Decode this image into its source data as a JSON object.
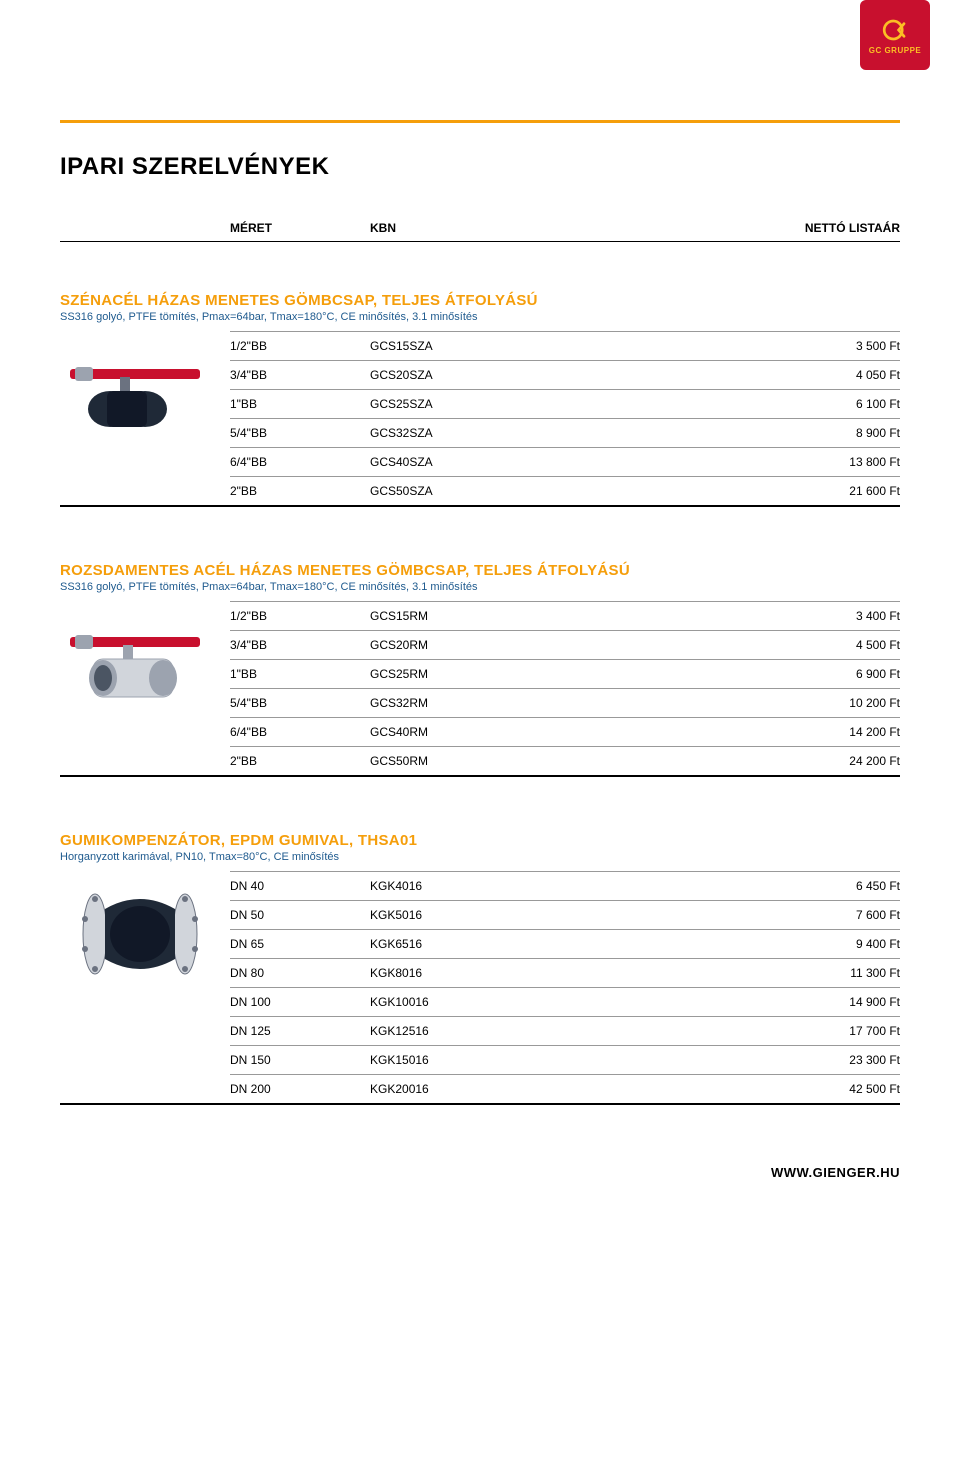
{
  "logo": {
    "text": "GC GRUPPE",
    "bg": "#c8102e",
    "fg": "#fbbf24"
  },
  "accent_color": "#f59e0b",
  "rule_color": "#f59e0b",
  "link_color": "#1e5a8e",
  "page_title": "IPARI SZERELVÉNYEK",
  "header": {
    "size": "MÉRET",
    "kbn": "KBN",
    "price": "NETTÓ LISTAÁR"
  },
  "sections": [
    {
      "title": "SZÉNACÉL HÁZAS MENETES GÖMBCSAP, TELJES ÁTFOLYÁSÚ",
      "subtitle": "SS316 golyó, PTFE tömítés, Pmax=64bar, Tmax=180°C, CE minősítés, 3.1 minősítés",
      "rows": [
        {
          "size": "1/2\"BB",
          "kbn": "GCS15SZA",
          "price": "3 500 Ft"
        },
        {
          "size": "3/4\"BB",
          "kbn": "GCS20SZA",
          "price": "4 050 Ft"
        },
        {
          "size": "1\"BB",
          "kbn": "GCS25SZA",
          "price": "6 100 Ft"
        },
        {
          "size": "5/4\"BB",
          "kbn": "GCS32SZA",
          "price": "8 900 Ft"
        },
        {
          "size": "6/4\"BB",
          "kbn": "GCS40SZA",
          "price": "13 800 Ft"
        },
        {
          "size": "2\"BB",
          "kbn": "GCS50SZA",
          "price": "21 600 Ft"
        }
      ]
    },
    {
      "title": "ROZSDAMENTES ACÉL HÁZAS MENETES GÖMBCSAP, TELJES ÁTFOLYÁSÚ",
      "subtitle": "SS316 golyó, PTFE tömítés, Pmax=64bar, Tmax=180°C, CE minősítés, 3.1 minősítés",
      "rows": [
        {
          "size": "1/2\"BB",
          "kbn": "GCS15RM",
          "price": "3 400 Ft"
        },
        {
          "size": "3/4\"BB",
          "kbn": "GCS20RM",
          "price": "4 500 Ft"
        },
        {
          "size": "1\"BB",
          "kbn": "GCS25RM",
          "price": "6 900 Ft"
        },
        {
          "size": "5/4\"BB",
          "kbn": "GCS32RM",
          "price": "10 200 Ft"
        },
        {
          "size": "6/4\"BB",
          "kbn": "GCS40RM",
          "price": "14 200 Ft"
        },
        {
          "size": "2\"BB",
          "kbn": "GCS50RM",
          "price": "24 200 Ft"
        }
      ]
    },
    {
      "title": "GUMIKOMPENZÁTOR, EPDM GUMIVAL, THSA01",
      "subtitle": "Horganyzott karimával, PN10, Tmax=80°C, CE minősítés",
      "rows": [
        {
          "size": "DN 40",
          "kbn": "KGK4016",
          "price": "6 450 Ft"
        },
        {
          "size": "DN 50",
          "kbn": "KGK5016",
          "price": "7 600 Ft"
        },
        {
          "size": "DN 65",
          "kbn": "KGK6516",
          "price": "9 400 Ft"
        },
        {
          "size": "DN 80",
          "kbn": "KGK8016",
          "price": "11 300 Ft"
        },
        {
          "size": "DN 100",
          "kbn": "KGK10016",
          "price": "14 900 Ft"
        },
        {
          "size": "DN 125",
          "kbn": "KGK12516",
          "price": "17 700 Ft"
        },
        {
          "size": "DN 150",
          "kbn": "KGK15016",
          "price": "23 300 Ft"
        },
        {
          "size": "DN 200",
          "kbn": "KGK20016",
          "price": "42 500 Ft"
        }
      ]
    }
  ],
  "footer_url": "WWW.GIENGER.HU"
}
